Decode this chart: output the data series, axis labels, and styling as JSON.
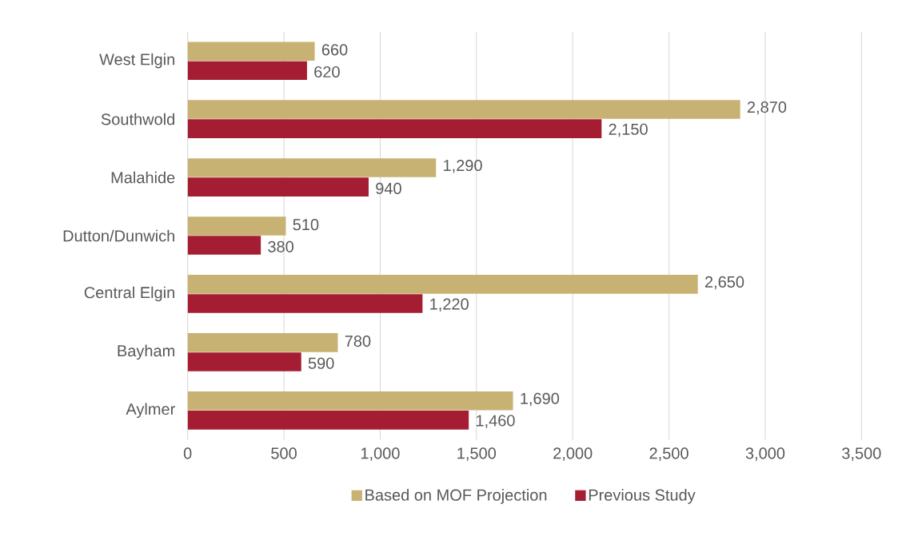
{
  "chart_data": {
    "type": "bar",
    "orientation": "horizontal",
    "categories": [
      "West Elgin",
      "Southwold",
      "Malahide",
      "Dutton/Dunwich",
      "Central Elgin",
      "Bayham",
      "Aylmer"
    ],
    "series": [
      {
        "name": "Based on MOF Projection",
        "color": "#c8b273",
        "values": [
          660,
          2870,
          1290,
          510,
          2650,
          780,
          1690
        ],
        "value_labels": [
          "660",
          "2,870",
          "1,290",
          "510",
          "2,650",
          "780",
          "1,690"
        ]
      },
      {
        "name": "Previous Study",
        "color": "#a51d32",
        "values": [
          620,
          2150,
          940,
          380,
          1220,
          590,
          1460
        ],
        "value_labels": [
          "620",
          "2,150",
          "940",
          "380",
          "1,220",
          "590",
          "1,460"
        ]
      }
    ],
    "xlim": [
      0,
      3500
    ],
    "xticks": [
      0,
      500,
      {
        "value": 1000,
        "label": "1,000"
      },
      {
        "value": 1500,
        "label": "1,500"
      },
      {
        "value": 2000,
        "label": "2,000"
      },
      {
        "value": 2500,
        "label": "2,500"
      },
      {
        "value": 3000,
        "label": "3,000"
      },
      {
        "value": 3500,
        "label": "3,500"
      }
    ],
    "grid": "x",
    "legend": "bottom"
  }
}
